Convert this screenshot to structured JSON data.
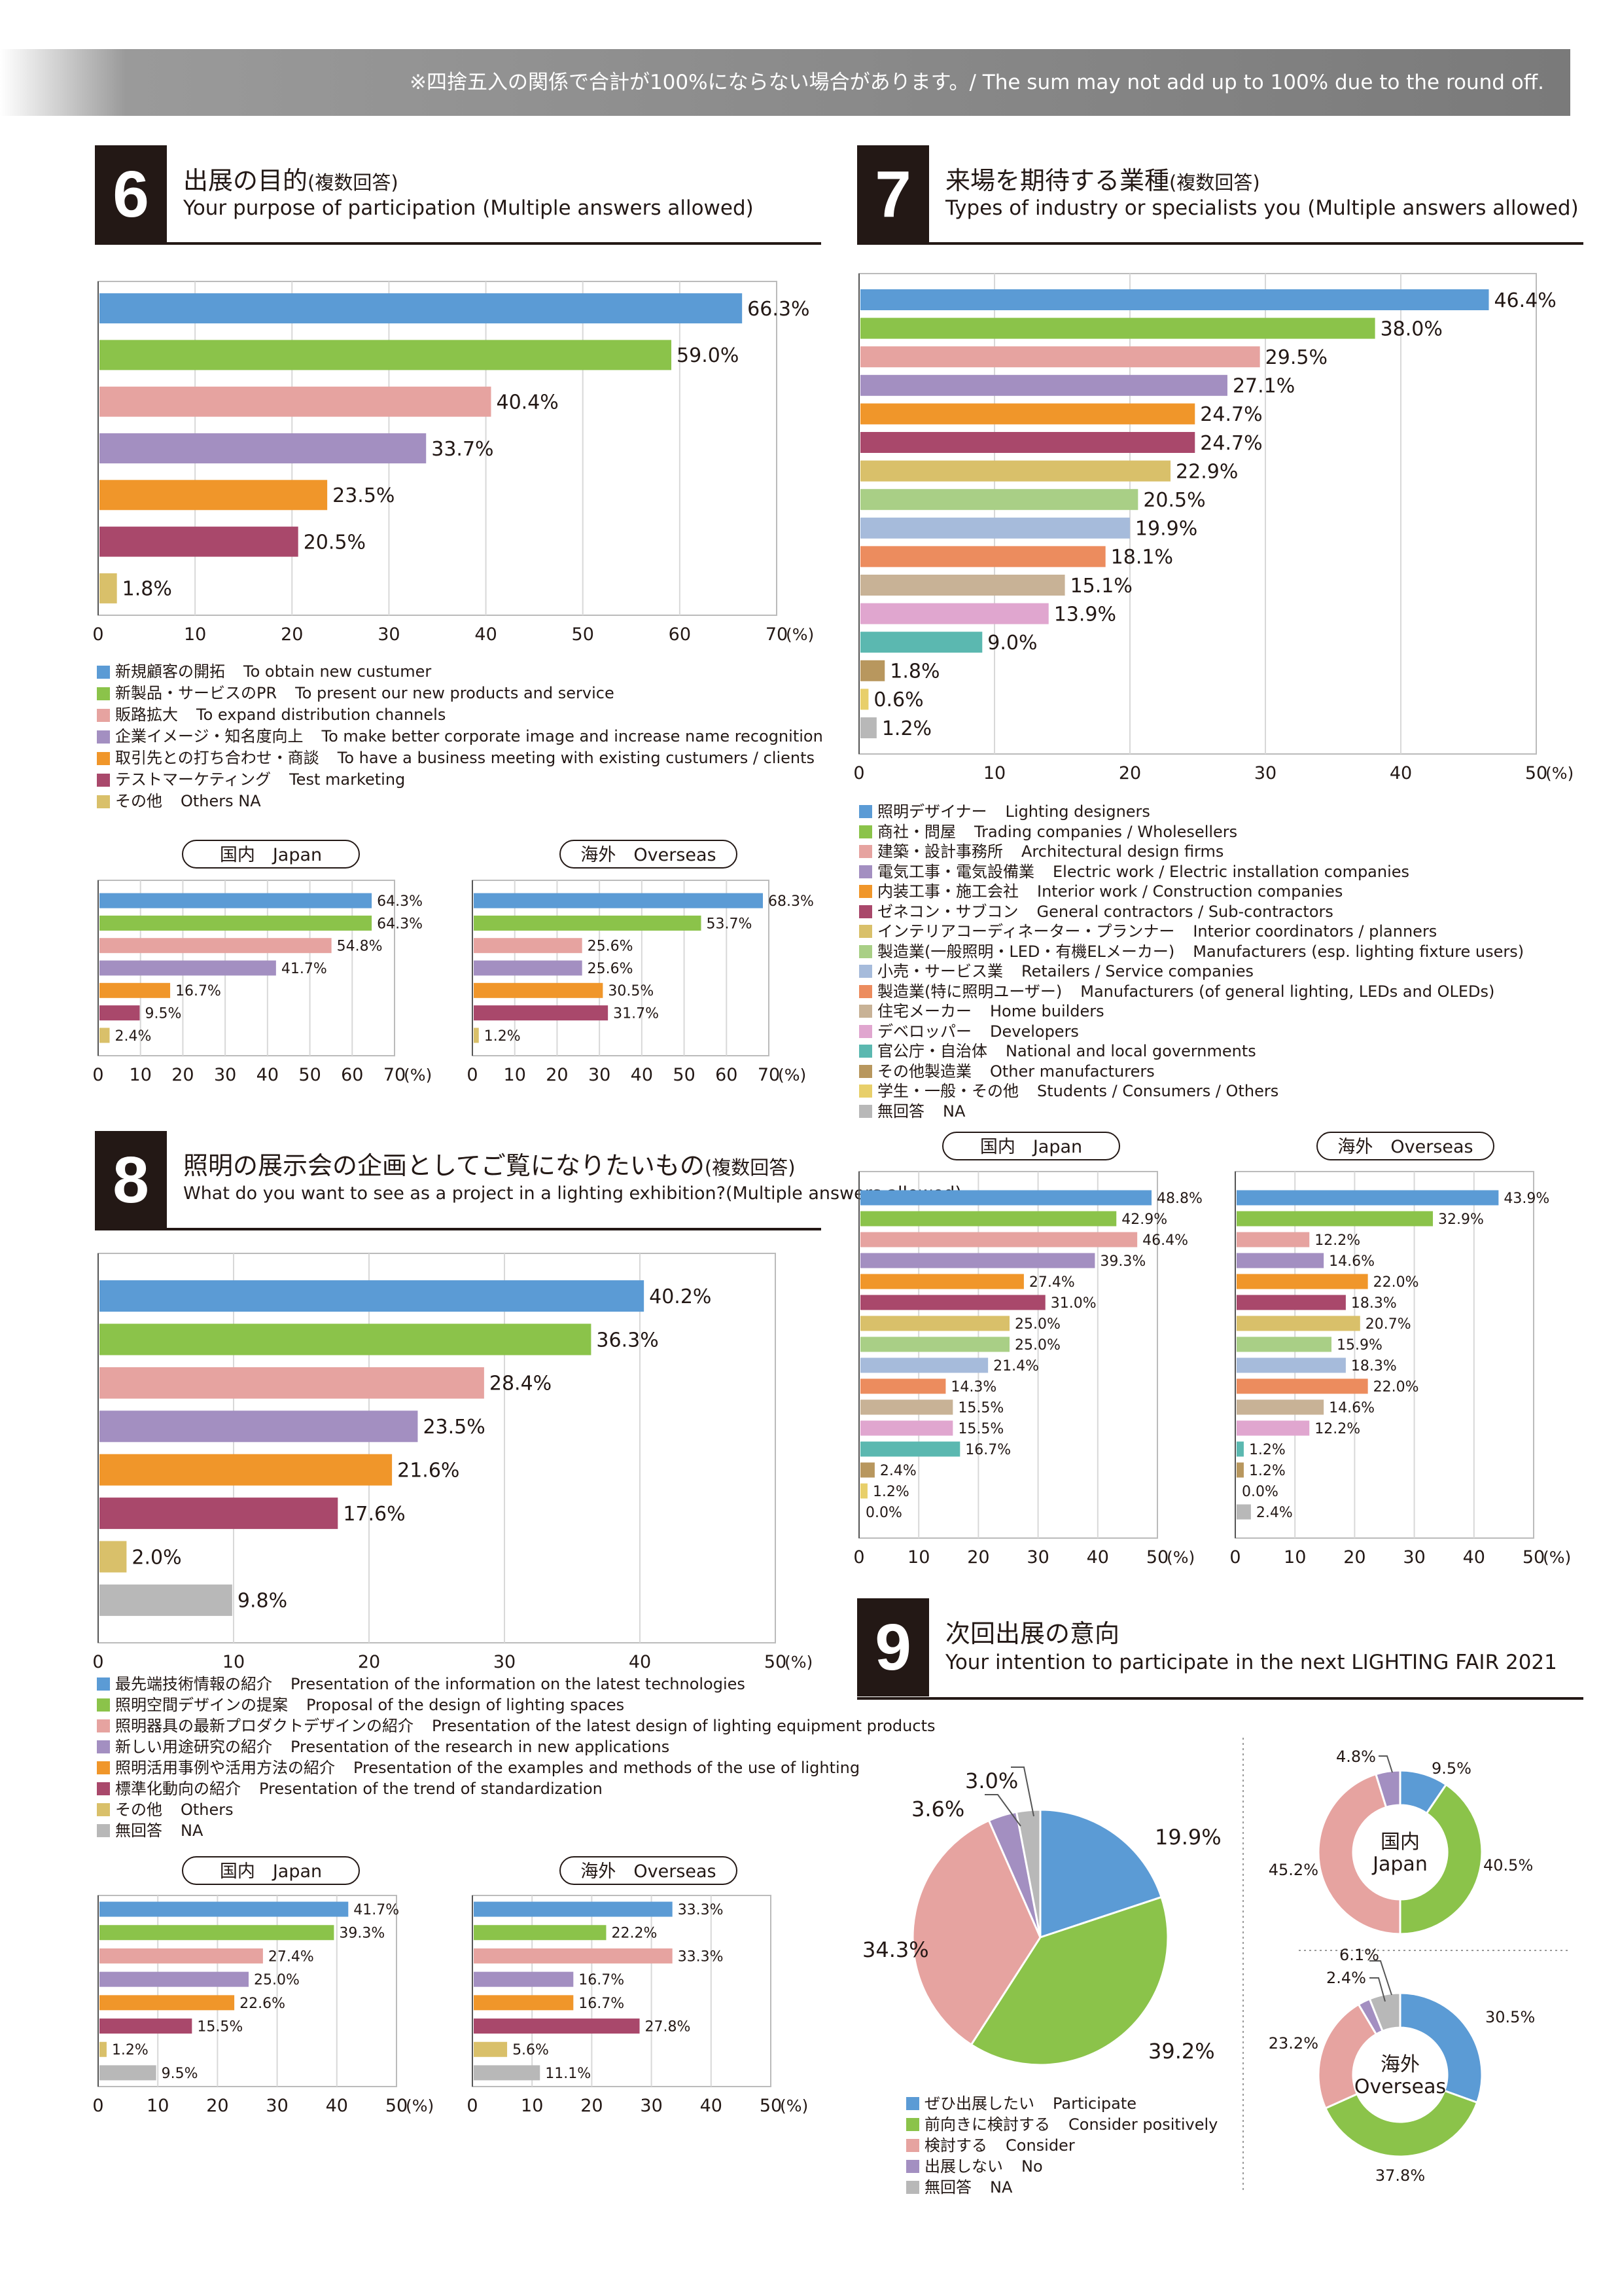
{
  "note": "※四捨五入の関係で合計が100%にならない場合があります。/ The sum may not add up to 100% due to the round off.",
  "colors": [
    "#5b9bd5",
    "#8bc34a",
    "#e6a3a0",
    "#a38fc1",
    "#f0962a",
    "#a9486b",
    "#d9c06a",
    "#a9cf86",
    "#a6bbdb",
    "#ec8c5e",
    "#c8b296",
    "#e0a6cf",
    "#5bb8b0",
    "#b8975e",
    "#e8cf6a",
    "#b8b8b8"
  ],
  "s6": {
    "num": "6",
    "title": "出展の目的",
    "title_note": "(複数回答)",
    "subtitle": "Your purpose of participation (Multiple answers allowed)",
    "legend": [
      {
        "jp": "新規顧客の開拓",
        "en": "To obtain new custumer"
      },
      {
        "jp": "新製品・サービスのPR",
        "en": "To present our new products and service"
      },
      {
        "jp": "販路拡大",
        "en": "To expand distribution channels"
      },
      {
        "jp": "企業イメージ・知名度向上",
        "en": "To make better corporate image and increase name recognition"
      },
      {
        "jp": "取引先との打ち合わせ・商談",
        "en": "To have a business meeting with existing custumers / clients"
      },
      {
        "jp": "テストマーケティング",
        "en": "Test marketing"
      },
      {
        "jp": "その他",
        "en": "Others NA"
      }
    ],
    "japan_label": "国内　Japan",
    "overseas_label": "海外　Overseas"
  },
  "s7": {
    "num": "7",
    "title": "来場を期待する業種",
    "title_note": "(複数回答)",
    "subtitle": "Types of industry or specialists you (Multiple answers allowed)",
    "legend": [
      {
        "jp": "照明デザイナー",
        "en": "Lighting designers"
      },
      {
        "jp": "商社・問屋",
        "en": "Trading companies / Wholesellers"
      },
      {
        "jp": "建築・設計事務所",
        "en": "Architectural design firms"
      },
      {
        "jp": "電気工事・電気設備業",
        "en": "Electric work / Electric installation companies"
      },
      {
        "jp": "内装工事・施工会社",
        "en": "Interior work / Construction companies"
      },
      {
        "jp": "ゼネコン・サブコン",
        "en": "General contractors / Sub-contractors"
      },
      {
        "jp": "インテリアコーディネーター・プランナー",
        "en": "Interior coordinators / planners"
      },
      {
        "jp": "製造業(一般照明・LED・有機ELメーカー)",
        "en": "Manufacturers (esp. lighting fixture users)"
      },
      {
        "jp": "小売・サービス業",
        "en": "Retailers / Service companies"
      },
      {
        "jp": "製造業(特に照明ユーザー)",
        "en": "Manufacturers (of general lighting, LEDs and OLEDs)"
      },
      {
        "jp": "住宅メーカー",
        "en": "Home builders"
      },
      {
        "jp": "デベロッパー",
        "en": "Developers"
      },
      {
        "jp": "官公庁・自治体",
        "en": "National and local governments"
      },
      {
        "jp": "その他製造業",
        "en": "Other manufacturers"
      },
      {
        "jp": "学生・一般・その他",
        "en": "Students / Consumers / Others"
      },
      {
        "jp": "無回答",
        "en": "NA"
      }
    ],
    "japan_label": "国内　Japan",
    "overseas_label": "海外　Overseas"
  },
  "s8": {
    "num": "8",
    "title": "照明の展示会の企画としてご覧になりたいもの",
    "title_note": "(複数回答)",
    "subtitle": "What do you want to see as a project in a lighting exhibition?(Multiple answers allowed)",
    "legend": [
      {
        "jp": "最先端技術情報の紹介",
        "en": "Presentation of the information on the latest technologies"
      },
      {
        "jp": "照明空間デザインの提案",
        "en": "Proposal of the design of lighting spaces"
      },
      {
        "jp": "照明器具の最新プロダクトデザインの紹介",
        "en": "Presentation of the latest design of lighting equipment products"
      },
      {
        "jp": "新しい用途研究の紹介",
        "en": "Presentation of the research in new applications"
      },
      {
        "jp": "照明活用事例や活用方法の紹介",
        "en": "Presentation of the examples and methods of the use of lighting"
      },
      {
        "jp": "標準化動向の紹介",
        "en": "Presentation of the trend of standardization"
      },
      {
        "jp": "その他",
        "en": "Others"
      },
      {
        "jp": "無回答",
        "en": "NA"
      }
    ],
    "japan_label": "国内　Japan",
    "overseas_label": "海外　Overseas"
  },
  "s9": {
    "num": "9",
    "title": "次回出展の意向",
    "subtitle": "Your intention to participate in the next LIGHTING FAIR 2021",
    "legend": [
      {
        "jp": "ぜひ出展したい",
        "en": "Participate"
      },
      {
        "jp": "前向きに検討する",
        "en": "Consider positively"
      },
      {
        "jp": "検討する",
        "en": "Consider"
      },
      {
        "jp": "出展しない",
        "en": "No"
      },
      {
        "jp": "無回答",
        "en": "NA"
      }
    ],
    "japan_center": [
      "国内",
      "Japan"
    ],
    "overseas_center": [
      "海外",
      "Overseas"
    ]
  },
  "chart_data": [
    {
      "id": "s6-main",
      "type": "bar",
      "orientation": "horizontal",
      "colors": [
        0,
        1,
        2,
        3,
        4,
        5,
        6
      ],
      "values": [
        66.3,
        59.0,
        40.4,
        33.7,
        23.5,
        20.5,
        1.8
      ],
      "ticks": [
        "0",
        "10",
        "20",
        "30",
        "40",
        "50",
        "60",
        "70"
      ],
      "unit": "(%)",
      "xlim": [
        0,
        70
      ],
      "grid": true
    },
    {
      "id": "s6-japan",
      "type": "bar",
      "orientation": "horizontal",
      "colors": [
        0,
        1,
        2,
        3,
        4,
        5,
        6
      ],
      "values": [
        64.3,
        64.3,
        54.8,
        41.7,
        16.7,
        9.5,
        2.4
      ],
      "ticks": [
        "0",
        "10",
        "20",
        "30",
        "40",
        "50",
        "60",
        "70"
      ],
      "unit": "(%)",
      "xlim": [
        0,
        70
      ]
    },
    {
      "id": "s6-overseas",
      "type": "bar",
      "orientation": "horizontal",
      "colors": [
        0,
        1,
        2,
        3,
        4,
        5,
        6
      ],
      "values": [
        68.3,
        53.7,
        25.6,
        25.6,
        30.5,
        31.7,
        1.2
      ],
      "ticks": [
        "0",
        "10",
        "20",
        "30",
        "40",
        "50",
        "60",
        "70"
      ],
      "unit": "(%)",
      "xlim": [
        0,
        70
      ]
    },
    {
      "id": "s7-main",
      "type": "bar",
      "orientation": "horizontal",
      "colors": [
        0,
        1,
        2,
        3,
        4,
        5,
        6,
        7,
        8,
        9,
        10,
        11,
        12,
        13,
        14,
        15
      ],
      "values": [
        46.4,
        38.0,
        29.5,
        27.1,
        24.7,
        24.7,
        22.9,
        20.5,
        19.9,
        18.1,
        15.1,
        13.9,
        9.0,
        1.8,
        0.6,
        1.2
      ],
      "ticks": [
        "0",
        "10",
        "20",
        "30",
        "40",
        "50"
      ],
      "unit": "(%)",
      "xlim": [
        0,
        50
      ],
      "grid": true
    },
    {
      "id": "s7-japan",
      "type": "bar",
      "orientation": "horizontal",
      "colors": [
        0,
        1,
        2,
        3,
        4,
        5,
        6,
        7,
        8,
        9,
        10,
        11,
        12,
        13,
        14,
        15
      ],
      "values": [
        48.8,
        42.9,
        46.4,
        39.3,
        27.4,
        31.0,
        25.0,
        25.0,
        21.4,
        14.3,
        15.5,
        15.5,
        16.7,
        2.4,
        1.2,
        0.0
      ],
      "ticks": [
        "0",
        "10",
        "20",
        "30",
        "40",
        "50"
      ],
      "unit": "(%)",
      "xlim": [
        0,
        50
      ]
    },
    {
      "id": "s7-overseas",
      "type": "bar",
      "orientation": "horizontal",
      "colors": [
        0,
        1,
        2,
        3,
        4,
        5,
        6,
        7,
        8,
        9,
        10,
        11,
        12,
        13,
        14,
        15
      ],
      "values": [
        43.9,
        32.9,
        12.2,
        14.6,
        22.0,
        18.3,
        20.7,
        15.9,
        18.3,
        22.0,
        14.6,
        12.2,
        1.2,
        1.2,
        0.0,
        2.4
      ],
      "ticks": [
        "0",
        "10",
        "20",
        "30",
        "40",
        "50"
      ],
      "unit": "(%)",
      "xlim": [
        0,
        50
      ]
    },
    {
      "id": "s8-main",
      "type": "bar",
      "orientation": "horizontal",
      "colors": [
        0,
        1,
        2,
        3,
        4,
        5,
        6,
        15
      ],
      "values": [
        40.2,
        36.3,
        28.4,
        23.5,
        21.6,
        17.6,
        2.0,
        9.8
      ],
      "ticks": [
        "0",
        "10",
        "20",
        "30",
        "40",
        "50"
      ],
      "unit": "(%)",
      "xlim": [
        0,
        50
      ],
      "grid": true
    },
    {
      "id": "s8-japan",
      "type": "bar",
      "orientation": "horizontal",
      "colors": [
        0,
        1,
        2,
        3,
        4,
        5,
        6,
        15
      ],
      "values": [
        41.7,
        39.3,
        27.4,
        25.0,
        22.6,
        15.5,
        1.2,
        9.5
      ],
      "ticks": [
        "0",
        "10",
        "20",
        "30",
        "40",
        "50"
      ],
      "unit": "(%)",
      "xlim": [
        0,
        50
      ]
    },
    {
      "id": "s8-overseas",
      "type": "bar",
      "orientation": "horizontal",
      "colors": [
        0,
        1,
        2,
        3,
        4,
        5,
        6,
        15
      ],
      "values": [
        33.3,
        22.2,
        33.3,
        16.7,
        16.7,
        27.8,
        5.6,
        11.1
      ],
      "ticks": [
        "0",
        "10",
        "20",
        "30",
        "40",
        "50"
      ],
      "unit": "(%)",
      "xlim": [
        0,
        50
      ]
    },
    {
      "id": "s9-all",
      "type": "pie",
      "colors": [
        0,
        1,
        2,
        3,
        15
      ],
      "values": [
        19.9,
        39.2,
        34.3,
        3.6,
        3.0
      ]
    },
    {
      "id": "s9-japan",
      "type": "pie",
      "donut": true,
      "colors": [
        0,
        1,
        2,
        3,
        15
      ],
      "values": [
        9.5,
        40.5,
        45.2,
        4.8,
        0.0
      ]
    },
    {
      "id": "s9-overseas",
      "type": "pie",
      "donut": true,
      "colors": [
        0,
        1,
        2,
        3,
        15
      ],
      "values": [
        30.5,
        37.8,
        23.2,
        2.4,
        6.1
      ]
    }
  ]
}
